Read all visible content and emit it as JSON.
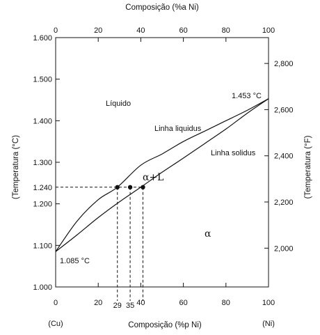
{
  "chart_data": {
    "type": "line",
    "title": "",
    "top_xlabel": "Composição (%a Ni)",
    "bottom_xlabel": "Composição (%p Ni)",
    "left_ylabel": "(Temperatura (°C)",
    "right_ylabel": "(Temperatura (°F)",
    "x_range": [
      0,
      100
    ],
    "y_range_c": [
      1000,
      1600
    ],
    "x_ticks": [
      "0",
      "20",
      "40",
      "60",
      "80",
      "100"
    ],
    "top_ticks": [
      "0",
      "20",
      "40",
      "60",
      "80",
      "100"
    ],
    "left_ticks": [
      {
        "value": 1000,
        "label": "1.000"
      },
      {
        "value": 1100,
        "label": "1.100"
      },
      {
        "value": 1200,
        "label": "1.200"
      },
      {
        "value": 1240,
        "label": "1.240"
      },
      {
        "value": 1300,
        "label": "1.300"
      },
      {
        "value": 1400,
        "label": "1.400"
      },
      {
        "value": 1500,
        "label": "1.500"
      },
      {
        "value": 1600,
        "label": "1.600"
      }
    ],
    "right_ticks": [
      {
        "value_f": 2000,
        "label": "2,000"
      },
      {
        "value_f": 2200,
        "label": "2,200"
      },
      {
        "value_f": 2400,
        "label": "2,400"
      },
      {
        "value_f": 2600,
        "label": "2,600"
      },
      {
        "value_f": 2800,
        "label": "2,800"
      }
    ],
    "extra_x_labels": [
      "29",
      "35"
    ],
    "end_labels": {
      "left": "(Cu)",
      "right": "(Ni)"
    },
    "liquidus": {
      "name": "Linha liquidus",
      "x": [
        0,
        10,
        20,
        29,
        40,
        50,
        60,
        70,
        80,
        90,
        100
      ],
      "y": [
        1085,
        1158,
        1210,
        1240,
        1293,
        1320,
        1350,
        1375,
        1400,
        1425,
        1453
      ]
    },
    "solidus": {
      "name": "Linha solidus",
      "x": [
        0,
        10,
        20,
        30,
        40,
        50,
        60,
        70,
        80,
        90,
        100
      ],
      "y": [
        1085,
        1125,
        1167,
        1205,
        1240,
        1276,
        1310,
        1345,
        1380,
        1418,
        1453
      ]
    },
    "tie_line": {
      "y": 1240,
      "points_x": [
        29,
        35,
        41
      ]
    },
    "region_labels": [
      {
        "text": "Líquido"
      },
      {
        "text": "α+L"
      },
      {
        "text": "α"
      }
    ],
    "annotations": [
      "1.453 °C",
      "1.085 °C"
    ]
  }
}
